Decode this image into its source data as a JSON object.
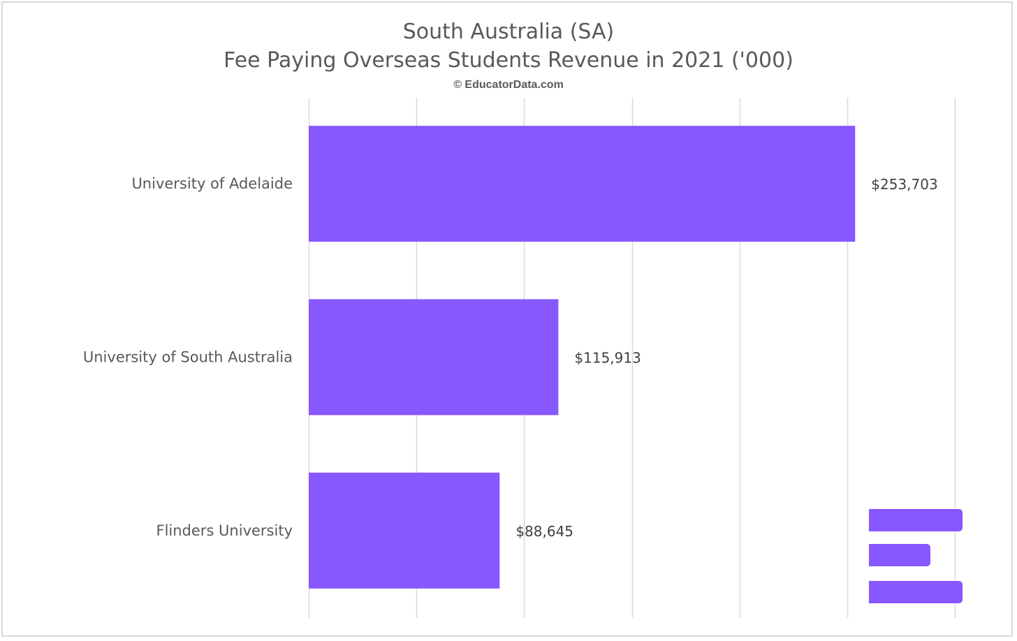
{
  "colors": {
    "bar": "#8757FF",
    "gridline": "#d9d9d9",
    "text": "#595959",
    "value_text": "#404040",
    "logo": "#8757FF"
  },
  "title_line1": "South Australia (SA)",
  "title_line2": "Fee Paying Overseas Students Revenue in 2021 ('000)",
  "copyright": "© EducatorData.com",
  "logo": {
    "name": "educatordata-logo-icon"
  },
  "chart_data": {
    "type": "bar",
    "orientation": "horizontal",
    "categories": [
      "University of Adelaide",
      "University of South Australia",
      "Flinders University"
    ],
    "values": [
      253703,
      115913,
      88645
    ],
    "data_labels": [
      "$253,703",
      "$115,913",
      "$88,645"
    ],
    "xlim": [
      0,
      300000
    ],
    "x_gridline_step": 50000,
    "x_tick_labels_visible": false,
    "grid": true,
    "legend": "none"
  }
}
